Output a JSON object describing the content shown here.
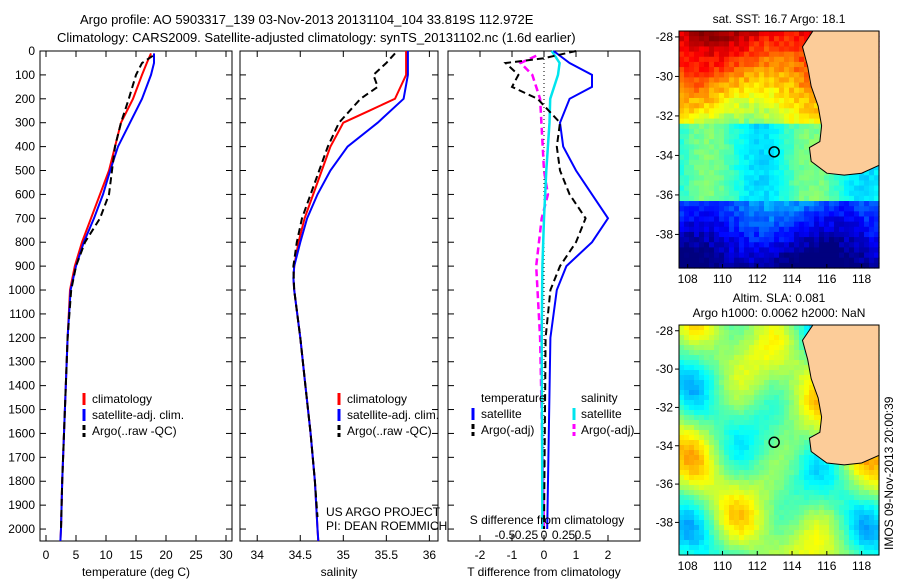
{
  "title": {
    "line1": "Argo profile: AO 5903317_139 03-Nov-2013 20131104_104 33.819S 112.972E",
    "line2": "Climatology: CARS2009. Satellite-adjusted climatology: synTS_20131102.nc (1.6d earlier)"
  },
  "side_label": "IMOS 09-Nov-2013 20:00:39",
  "colors": {
    "climatology": "#ff0000",
    "satellite": "#0000ff",
    "argo": "#000000",
    "sal_satellite": "#00e5ee",
    "sal_argo": "#ff00ff",
    "land": "#fccc99"
  },
  "chart_data": [
    {
      "type": "line",
      "id": "temperature",
      "xlabel": "temperature (deg C)",
      "ylabel": "",
      "xlim": [
        -1,
        31
      ],
      "ylim": [
        2050,
        0
      ],
      "xticks": [
        0,
        5,
        10,
        15,
        20,
        25,
        30
      ],
      "yticks": [
        0,
        100,
        200,
        300,
        400,
        500,
        600,
        700,
        800,
        900,
        1000,
        1100,
        1200,
        1300,
        1400,
        1500,
        1600,
        1700,
        1800,
        1900,
        2000
      ],
      "legend": [
        "climatology",
        "satellite-adj. clim.",
        "Argo(..raw -QC)"
      ],
      "series": [
        {
          "name": "climatology",
          "depth": [
            10,
            50,
            100,
            200,
            300,
            400,
            500,
            600,
            700,
            800,
            900,
            1000,
            1200,
            1400,
            1600,
            1800,
            2000,
            2050
          ],
          "values": [
            17.5,
            16.8,
            16,
            14.5,
            12.5,
            11.5,
            10.5,
            9,
            7.5,
            6,
            4.8,
            4,
            3.6,
            3.3,
            3,
            2.7,
            2.5,
            2.4
          ]
        },
        {
          "name": "satellite-adj. clim.",
          "depth": [
            10,
            50,
            100,
            200,
            300,
            400,
            500,
            600,
            700,
            800,
            900,
            1000,
            1200,
            1400,
            1600,
            1800,
            2000,
            2050
          ],
          "values": [
            18,
            18,
            17.5,
            16,
            14,
            12,
            10.7,
            9.5,
            8,
            6.3,
            5,
            4.1,
            3.6,
            3.3,
            3,
            2.7,
            2.5,
            2.4
          ]
        },
        {
          "name": "Argo(..raw -QC)",
          "depth": [
            20,
            50,
            100,
            200,
            300,
            400,
            500,
            600,
            700,
            800,
            900,
            1000,
            1200,
            1400,
            1600,
            1800,
            2000
          ],
          "values": [
            17.8,
            16,
            15,
            13.8,
            12.5,
            11.5,
            11,
            10.5,
            9,
            6.5,
            5,
            4.2,
            3.6,
            3.3,
            3,
            2.7,
            2.5
          ]
        }
      ]
    },
    {
      "type": "line",
      "id": "salinity",
      "xlabel": "salinity",
      "xlim": [
        33.8,
        36.1
      ],
      "ylim": [
        2050,
        0
      ],
      "xticks": [
        34,
        34.5,
        35,
        35.5,
        36
      ],
      "xticklabels": [
        "34",
        "34.5",
        "35",
        "35.5",
        "36"
      ],
      "legend": [
        "climatology",
        "satellite-adj. clim.",
        "Argo(..raw -QC)"
      ],
      "annotation": [
        "US ARGO PROJECT",
        "PI: DEAN ROEMMICH"
      ],
      "series": [
        {
          "name": "climatology",
          "depth": [
            0,
            100,
            200,
            250,
            300,
            400,
            500,
            600,
            700,
            800,
            900,
            950,
            1000,
            1200,
            1400,
            1600,
            1800,
            2000,
            2050
          ],
          "values": [
            35.73,
            35.73,
            35.6,
            35.3,
            35.0,
            34.85,
            34.75,
            34.65,
            34.55,
            34.48,
            34.43,
            34.42,
            34.43,
            34.5,
            34.56,
            34.62,
            34.67,
            34.7,
            34.71
          ]
        },
        {
          "name": "satellite-adj. clim.",
          "depth": [
            0,
            100,
            200,
            300,
            400,
            500,
            600,
            700,
            800,
            900,
            950,
            1000,
            1200,
            1400,
            1600,
            1800,
            2000,
            2050
          ],
          "values": [
            35.75,
            35.75,
            35.7,
            35.4,
            35.05,
            34.85,
            34.7,
            34.58,
            34.5,
            34.43,
            34.42,
            34.43,
            34.5,
            34.56,
            34.62,
            34.67,
            34.7,
            34.71
          ]
        },
        {
          "name": "Argo(..raw -QC)",
          "depth": [
            10,
            50,
            100,
            150,
            200,
            300,
            400,
            500,
            600,
            700,
            800,
            900,
            1000,
            1200,
            1400,
            1600,
            1800,
            1950
          ],
          "values": [
            35.6,
            35.5,
            35.35,
            35.4,
            35.2,
            34.95,
            34.82,
            34.72,
            34.62,
            34.52,
            34.46,
            34.42,
            34.43,
            34.5,
            34.56,
            34.62,
            34.67,
            34.7
          ]
        }
      ]
    },
    {
      "type": "line",
      "id": "difference",
      "xlabel": "T difference from climatology",
      "xlabel2": "S difference from climatology",
      "xlim": [
        -3,
        3
      ],
      "ylim": [
        2050,
        0
      ],
      "xticks": [
        -2,
        -1,
        0,
        1,
        2
      ],
      "xticks2": [
        -0.5,
        -0.25,
        0,
        0.25,
        0.5
      ],
      "xticklabels2": [
        "-0.5",
        "-0.25",
        "0",
        "0.25",
        "0.5"
      ],
      "legend_t": {
        "title": "temperature",
        "items": [
          "satellite",
          "Argo(-adj)"
        ]
      },
      "legend_s": {
        "title": "salinity",
        "items": [
          "satellite",
          "Argo(-adj)"
        ]
      },
      "series": [
        {
          "name": "T satellite",
          "axis": "T",
          "depth": [
            0,
            50,
            100,
            150,
            200,
            300,
            400,
            500,
            600,
            700,
            800,
            900,
            1000,
            1200,
            2000
          ],
          "values": [
            0.3,
            0.8,
            1.5,
            1.5,
            0.8,
            0.5,
            0.6,
            1.0,
            1.5,
            2.0,
            1.5,
            0.7,
            0.4,
            0.2,
            0.1
          ]
        },
        {
          "name": "T Argo(-adj)",
          "axis": "T",
          "depth": [
            0,
            30,
            50,
            100,
            150,
            200,
            300,
            400,
            500,
            600,
            700,
            800,
            900,
            1000,
            1200,
            2000
          ],
          "values": [
            1.0,
            0.0,
            -1.2,
            -0.8,
            -1.0,
            -0.2,
            0.5,
            0.4,
            0.5,
            0.8,
            1.3,
            1.0,
            0.5,
            0.2,
            0.05,
            0.0
          ]
        },
        {
          "name": "S satellite",
          "axis": "S",
          "depth": [
            0,
            50,
            100,
            200,
            300,
            500,
            700,
            900,
            1200,
            2000
          ],
          "values": [
            0.1,
            0.2,
            0.18,
            0.08,
            0.07,
            0.03,
            0.0,
            -0.02,
            -0.03,
            -0.02
          ]
        },
        {
          "name": "S Argo(-adj)",
          "axis": "S",
          "depth": [
            20,
            50,
            100,
            200,
            500,
            600,
            700,
            900,
            1200,
            2000
          ],
          "values": [
            -0.1,
            -0.3,
            -0.15,
            -0.05,
            0.0,
            0.05,
            -0.03,
            -0.1,
            -0.05,
            0.0
          ]
        }
      ]
    },
    {
      "type": "heatmap",
      "id": "sst_map",
      "title": "sat. SST: 16.7  Argo: 18.1",
      "xticks": [
        108,
        110,
        112,
        114,
        116,
        118
      ],
      "yticks": [
        -28,
        -30,
        -32,
        -34,
        -36,
        -38
      ],
      "xlim": [
        107.5,
        119
      ],
      "ylim": [
        -39.7,
        -27.7
      ],
      "argo_position": [
        112.972,
        -33.819
      ]
    },
    {
      "type": "heatmap",
      "id": "sla_map",
      "title": "Altim. SLA: 0.081",
      "subtitle": "Argo h1000: 0.0062 h2000: NaN",
      "xticks": [
        108,
        110,
        112,
        114,
        116,
        118
      ],
      "yticks": [
        -28,
        -30,
        -32,
        -34,
        -36,
        -38
      ],
      "xlim": [
        107.5,
        119
      ],
      "ylim": [
        -39.7,
        -27.7
      ],
      "argo_position": [
        112.972,
        -33.819
      ]
    }
  ]
}
